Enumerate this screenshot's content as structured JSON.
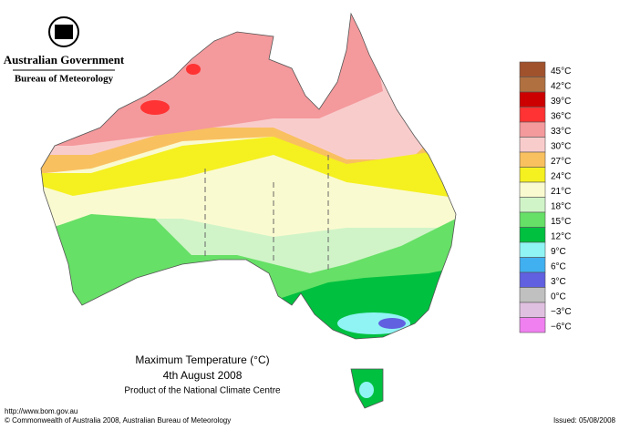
{
  "header": {
    "agency": "Australian Government",
    "bureau": "Bureau of Meteorology"
  },
  "map": {
    "title": "Maximum Temperature (°C)",
    "date": "4th August 2008",
    "product": "Product of the National Climate Centre"
  },
  "legend": [
    {
      "label": "45°C",
      "color": "#a0522d"
    },
    {
      "label": "42°C",
      "color": "#b07040"
    },
    {
      "label": "39°C",
      "color": "#cc0000"
    },
    {
      "label": "36°C",
      "color": "#ff3333"
    },
    {
      "label": "33°C",
      "color": "#f4999c"
    },
    {
      "label": "30°C",
      "color": "#f9cccc"
    },
    {
      "label": "27°C",
      "color": "#f9c060"
    },
    {
      "label": "24°C",
      "color": "#f5f020"
    },
    {
      "label": "21°C",
      "color": "#fafad0"
    },
    {
      "label": "18°C",
      "color": "#d0f4c8"
    },
    {
      "label": "15°C",
      "color": "#66e066"
    },
    {
      "label": "12°C",
      "color": "#00c040"
    },
    {
      "label": "9°C",
      "color": "#90f4f4"
    },
    {
      "label": "6°C",
      "color": "#40b0f0"
    },
    {
      "label": "3°C",
      "color": "#6060e0"
    },
    {
      "label": "0°C",
      "color": "#c0c0c0"
    },
    {
      "label": "−3°C",
      "color": "#e0c0e0"
    },
    {
      "label": "−6°C",
      "color": "#f080f0"
    }
  ],
  "footer": {
    "url": "http://www.bom.gov.au",
    "copyright": "© Commonwealth of Australia 2008, Australian Bureau of Meteorology",
    "issued": "Issued: 05/08/2008"
  }
}
